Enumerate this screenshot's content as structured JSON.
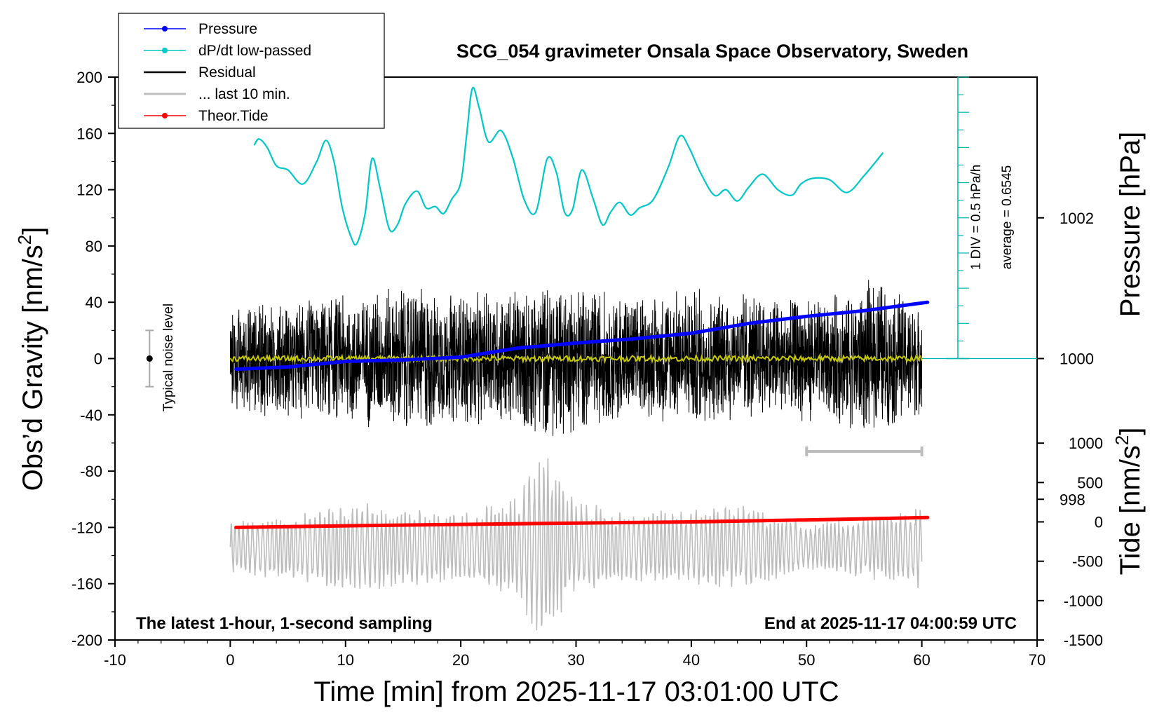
{
  "chart_data": {
    "type": "line",
    "title": "SCG_054 gravimeter Onsala Space Observatory, Sweden",
    "footer_left": "The latest 1-hour, 1-second sampling",
    "footer_right": "End at 2025-11-17 04:00:59 UTC",
    "xlabel": "Time [min] from 2025-11-17 03:01:00 UTC",
    "ylabel_left_main": "Obs’d Gravity [nm/s",
    "ylabel_left_sup": "2",
    "ylabel_left_close": "]",
    "ylabel_right_pressure": "Pressure [hPa]",
    "ylabel_right_tide_main": "Tide [nm/s",
    "ylabel_right_tide_sup": "2",
    "ylabel_right_tide_close": "]",
    "xlim": [
      -10,
      70
    ],
    "ylim": [
      -200,
      200
    ],
    "x_ticks": [
      "-10",
      "0",
      "10",
      "20",
      "30",
      "40",
      "50",
      "60",
      "70"
    ],
    "y_ticks": [
      "200",
      "160",
      "120",
      "80",
      "40",
      "0",
      "-40",
      "-80",
      "-120",
      "-160",
      "-200"
    ],
    "pressure_axis": {
      "range": [
        996,
        1004
      ],
      "ticks": [
        "1002",
        "1000",
        "998"
      ],
      "tick_values": [
        1002,
        1000,
        998
      ]
    },
    "tide_axis": {
      "range": [
        -1500,
        1500
      ],
      "ticks": [
        "1000",
        "500",
        "0",
        "-500",
        "-1000",
        "-1500"
      ],
      "tick_values": [
        1000,
        500,
        0,
        -500,
        -1000,
        -1500
      ]
    },
    "dpdt_scale": {
      "label": "1 DIV = 0.5 hPa/h",
      "average": "average = 0.6545"
    },
    "noise_level_label": "Typical noise level",
    "noise_level": {
      "x": -7,
      "center": 0,
      "half_range": 20
    },
    "legend": [
      {
        "name": "Pressure",
        "color": "#0000ff",
        "marker": true
      },
      {
        "name": "dP/dt low-passed",
        "color": "#00c8c8",
        "marker": true
      },
      {
        "name": "Residual",
        "color": "#000000",
        "marker": false
      },
      {
        "name": "... last 10 min.",
        "color": "#c0c0c0",
        "marker": false
      },
      {
        "name": "Theor.Tide",
        "color": "#ff0000",
        "marker": true
      }
    ],
    "last10_bracket": {
      "x_start": 50,
      "x_end": 60,
      "y": -66
    },
    "series": [
      {
        "name": "Pressure",
        "color": "#0000ff",
        "axis": "pressure",
        "x": [
          0.5,
          5,
          10,
          15,
          20,
          25,
          30,
          35,
          40,
          45,
          50,
          55,
          60.5
        ],
        "values": [
          999.85,
          999.88,
          999.96,
          999.98,
          1000.02,
          1000.15,
          1000.22,
          1000.28,
          1000.36,
          1000.5,
          1000.6,
          1000.68,
          1000.8
        ]
      },
      {
        "name": "dP/dt low-passed",
        "color": "#00c8c8",
        "axis": "gravity",
        "x": [
          2.1,
          2.5,
          3.2,
          4,
          5,
          6.3,
          7.5,
          8.3,
          9,
          9.7,
          10.5,
          11,
          11.7,
          12.3,
          13,
          13.8,
          14.5,
          15.2,
          16.2,
          17,
          17.8,
          18.5,
          19.2,
          20,
          20.5,
          21,
          21.6,
          22.4,
          23.5,
          24.5,
          25.5,
          26.5,
          27.5,
          28.3,
          29,
          29.7,
          30.5,
          31.5,
          32.3,
          33,
          33.8,
          34.7,
          35.5,
          36.7,
          38,
          39,
          39.8,
          40.8,
          42,
          43,
          44,
          45,
          46.2,
          47.5,
          48.7,
          49.5,
          50.5,
          52,
          53.5,
          55,
          56.6
        ],
        "values": [
          152,
          156,
          150,
          137,
          134,
          124,
          140,
          155,
          140,
          108,
          86,
          82,
          103,
          142,
          121,
          92,
          95,
          110,
          119,
          107,
          108,
          103,
          113,
          125,
          158,
          192,
          178,
          154,
          162,
          143,
          113,
          104,
          142,
          132,
          104,
          106,
          134,
          113,
          95,
          104,
          111,
          102,
          107,
          113,
          136,
          158,
          150,
          132,
          116,
          120,
          112,
          122,
          131,
          120,
          116,
          124,
          128,
          127,
          118,
          130,
          146
        ]
      },
      {
        "name": "Theor.Tide",
        "color": "#ff0000",
        "axis": "tide",
        "x": [
          0.5,
          10,
          20,
          30,
          40,
          50,
          60.5
        ],
        "values": [
          -70,
          -50,
          -32,
          -15,
          0,
          25,
          55
        ]
      }
    ],
    "residual_envelope": {
      "x": [
        0,
        4,
        8,
        12,
        16,
        20,
        24,
        28,
        32,
        36,
        40,
        44,
        48,
        52,
        56,
        60
      ],
      "amplitude": [
        40,
        42,
        45,
        50,
        55,
        48,
        52,
        58,
        50,
        46,
        52,
        48,
        44,
        46,
        60,
        40
      ]
    },
    "last10_envelope": {
      "x": [
        0,
        5,
        10,
        15,
        20,
        25,
        27,
        30,
        35,
        40,
        45,
        50,
        55,
        60
      ],
      "amplitude": [
        350,
        420,
        600,
        500,
        450,
        650,
        1300,
        600,
        450,
        500,
        550,
        300,
        400,
        550
      ]
    }
  }
}
